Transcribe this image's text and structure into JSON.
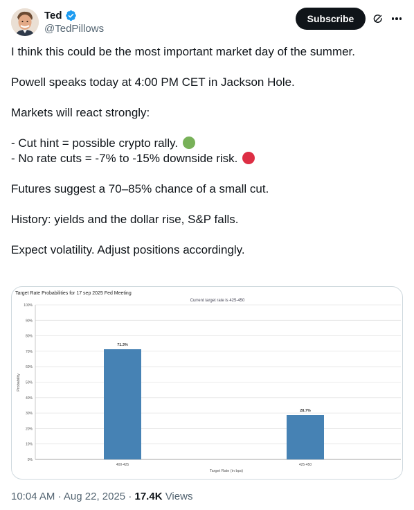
{
  "author": {
    "name": "Ted",
    "handle": "@TedPillows",
    "verified": true,
    "avatar_icon": "profile-photo"
  },
  "actions": {
    "subscribe_label": "Subscribe",
    "grok_icon": "grok-icon",
    "more_icon": "more-icon"
  },
  "tweet": {
    "lines": [
      "I think this could be the most important market day of the summer.",
      "Powell speaks today at 4:00 PM CET in Jackson Hole.",
      "Markets will react strongly:",
      "- Cut hint = possible crypto rally.",
      "- No rate cuts = -7% to -15% downside risk.",
      "Futures suggest a 70–85% chance of a small cut.",
      "History: yields and the dollar rise, S&P falls.",
      "Expect volatility. Adjust positions accordingly."
    ],
    "emoji": {
      "green_circle": "#78b159",
      "red_circle": "#dd2e44"
    }
  },
  "meta": {
    "time": "10:04 AM",
    "separator": "·",
    "date": "Aug 22, 2025",
    "views_count": "17.4K",
    "views_label": "Views"
  },
  "chart_data": {
    "type": "bar",
    "title": "Target Rate Probabilities for 17 sep 2025 Fed Meeting",
    "subtitle": "Current target rate is 425-450",
    "xlabel": "Target Rate (in bps)",
    "ylabel": "Probability",
    "categories": [
      "400-425",
      "425-450"
    ],
    "values": [
      71.3,
      28.7
    ],
    "data_labels": [
      "71.3%",
      "28.7%"
    ],
    "ylim": [
      0,
      100
    ],
    "yticks": [
      "0%",
      "10%",
      "20%",
      "30%",
      "40%",
      "50%",
      "60%",
      "70%",
      "80%",
      "90%",
      "100%"
    ],
    "grid": true,
    "bar_color": "#4682b4"
  }
}
